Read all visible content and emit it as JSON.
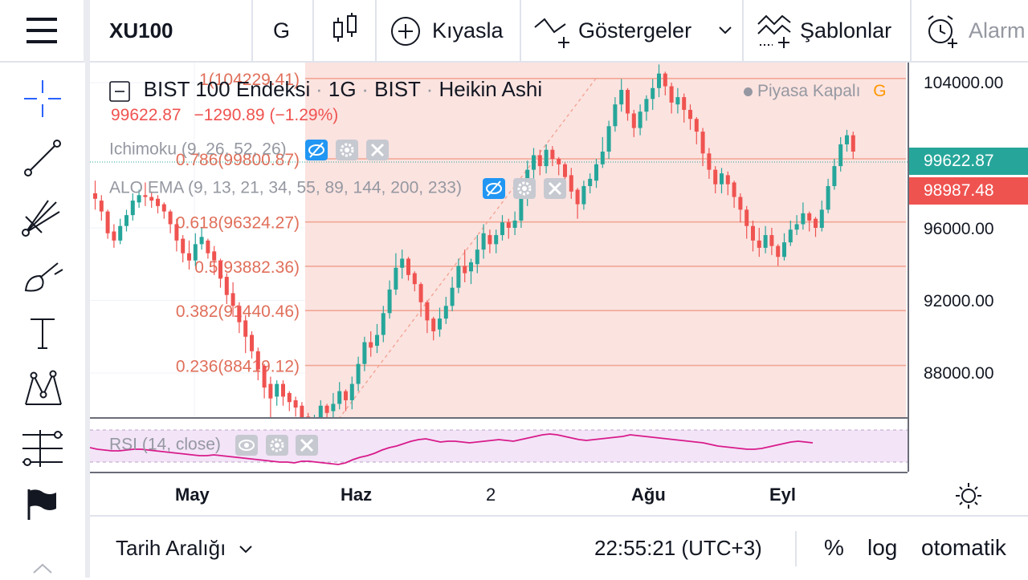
{
  "toolbar": {
    "symbol": "XU100",
    "interval": "G",
    "compare_label": "Kıyasla",
    "indicators_label": "Göstergeler",
    "templates_label": "Şablonlar",
    "alarm_label": "Alarm"
  },
  "legend": {
    "title": "BIST 100 Endeksi",
    "interval": "1G",
    "exchange": "BIST",
    "chart_style": "Heikin Ashi",
    "market_status": "Piyasa Kapalı",
    "market_status_letter": "G",
    "last_price": "99622.87",
    "change": "−1290.89 (−1.29%)",
    "indicator_1": "Ichimoku (9, 26, 52, 26)",
    "indicator_2": "ALO EMA (9, 13, 21, 34, 55, 89, 144, 200, 233)"
  },
  "fib_levels": [
    {
      "label": "1(104229.41)",
      "value": 104229.41
    },
    {
      "label": "0.786(99800.87)",
      "value": 99800.87
    },
    {
      "label": "0.618(96324.27)",
      "value": 96324.27
    },
    {
      "label": "0.5(93882.36)",
      "value": 93882.36
    },
    {
      "label": "0.382(91440.46)",
      "value": 91440.46
    },
    {
      "label": "0.236(88419.12)",
      "value": 88419.12
    }
  ],
  "price_axis": {
    "ticks": [
      "104000.00",
      "96000.00",
      "92000.00",
      "88000.00"
    ],
    "tick_values": [
      104000,
      96000,
      92000,
      88000
    ],
    "last_price_tag": "99622.87",
    "second_tag": "98987.48"
  },
  "rsi": {
    "label": "RSI (14, close)"
  },
  "time_axis": {
    "labels": [
      "May",
      "Haz",
      "2",
      "Ağu",
      "Eyl"
    ]
  },
  "bottombar": {
    "date_range_label": "Tarih Aralığı",
    "clock": "22:55:21 (UTC+3)",
    "percent_label": "%",
    "log_label": "log",
    "auto_label": "otomatik"
  },
  "colors": {
    "up": "#26a69a",
    "down": "#ef5350",
    "fib_line": "#f2a694",
    "fib_fill": "#fbe3e0",
    "fib_text": "#e06f5a",
    "rsi_line": "#d81b8a",
    "rsi_band": "#f3e4f8",
    "accent": "#2962ff"
  },
  "chart_data": {
    "type": "candlestick",
    "style": "Heikin Ashi",
    "ylim": [
      84500,
      105000
    ],
    "candles": [
      [
        97900,
        97600,
        98600,
        97000
      ],
      [
        97500,
        96900,
        97800,
        96400
      ],
      [
        96900,
        95700,
        97000,
        95400
      ],
      [
        95800,
        95300,
        96200,
        94900
      ],
      [
        95300,
        96100,
        96500,
        95100
      ],
      [
        96100,
        96700,
        97000,
        95800
      ],
      [
        96700,
        97500,
        97900,
        96400
      ],
      [
        97400,
        97800,
        98100,
        97100
      ],
      [
        97800,
        97700,
        98500,
        97200
      ],
      [
        97700,
        97500,
        98000,
        97100
      ],
      [
        97600,
        97200,
        97800,
        96800
      ],
      [
        97300,
        96900,
        97400,
        96500
      ],
      [
        96900,
        96200,
        97000,
        95700
      ],
      [
        96200,
        95300,
        96500,
        94700
      ],
      [
        95400,
        94600,
        95600,
        94100
      ],
      [
        94600,
        94200,
        95300,
        93700
      ],
      [
        94200,
        95100,
        95700,
        93900
      ],
      [
        95100,
        95500,
        96000,
        94800
      ],
      [
        95300,
        94600,
        95400,
        94300
      ],
      [
        94700,
        94200,
        95000,
        93400
      ],
      [
        94200,
        93200,
        94300,
        92700
      ],
      [
        93300,
        92300,
        93500,
        91800
      ],
      [
        92400,
        91700,
        93000,
        91100
      ],
      [
        91700,
        90800,
        91900,
        90200
      ],
      [
        90900,
        90000,
        91200,
        89100
      ],
      [
        90100,
        89200,
        90300,
        88800
      ],
      [
        89200,
        88200,
        89400,
        87600
      ],
      [
        88400,
        87200,
        88500,
        86600
      ],
      [
        87400,
        86600,
        87800,
        85400
      ],
      [
        86700,
        87400,
        87600,
        86200
      ],
      [
        87400,
        86700,
        87600,
        86200
      ],
      [
        86900,
        86400,
        87000,
        85900
      ],
      [
        86500,
        86100,
        86700,
        85600
      ],
      [
        86200,
        85500,
        86400,
        85100
      ],
      [
        85600,
        84900,
        85800,
        84200
      ],
      [
        85000,
        85500,
        85700,
        84400
      ],
      [
        85400,
        86200,
        86500,
        85100
      ],
      [
        86200,
        85800,
        86300,
        85200
      ],
      [
        85900,
        86300,
        86900,
        85400
      ],
      [
        86300,
        87000,
        87500,
        86000
      ],
      [
        87000,
        86500,
        87100,
        85900
      ],
      [
        86500,
        87400,
        87800,
        86000
      ],
      [
        87400,
        88500,
        88900,
        87000
      ],
      [
        88500,
        89700,
        90000,
        88100
      ],
      [
        89700,
        89400,
        90300,
        88900
      ],
      [
        89500,
        90100,
        90700,
        89100
      ],
      [
        90100,
        91300,
        91700,
        89700
      ],
      [
        91300,
        92600,
        93100,
        91000
      ],
      [
        92600,
        93800,
        94600,
        92300
      ],
      [
        93800,
        94300,
        94800,
        93200
      ],
      [
        94300,
        93400,
        94400,
        93100
      ],
      [
        93500,
        92900,
        93600,
        92500
      ],
      [
        92900,
        91900,
        93000,
        91100
      ],
      [
        91900,
        90900,
        92000,
        90200
      ],
      [
        91000,
        90300,
        91100,
        89800
      ],
      [
        90400,
        91000,
        91600,
        90000
      ],
      [
        91000,
        91700,
        92200,
        90700
      ],
      [
        91700,
        92700,
        93300,
        91400
      ],
      [
        92700,
        93900,
        94300,
        92400
      ],
      [
        93900,
        93500,
        94800,
        93000
      ],
      [
        93600,
        94100,
        94300,
        92900
      ],
      [
        94000,
        94800,
        95600,
        93500
      ],
      [
        94800,
        95700,
        96200,
        94300
      ],
      [
        95600,
        95100,
        95900,
        94600
      ],
      [
        95100,
        95600,
        95900,
        94600
      ],
      [
        95600,
        96300,
        96700,
        95300
      ],
      [
        96300,
        96000,
        96500,
        95400
      ],
      [
        96000,
        96400,
        96900,
        95600
      ],
      [
        96400,
        97600,
        98000,
        96000
      ],
      [
        97600,
        99200,
        99700,
        97200
      ],
      [
        99200,
        100000,
        100400,
        98700
      ],
      [
        100000,
        99400,
        100300,
        98900
      ],
      [
        99400,
        100300,
        100600,
        99000
      ],
      [
        100300,
        99800,
        100500,
        99400
      ],
      [
        99800,
        99500,
        99900,
        98900
      ],
      [
        99500,
        98800,
        99600,
        98200
      ],
      [
        98900,
        98000,
        99300,
        97600
      ],
      [
        98100,
        97300,
        98200,
        96500
      ],
      [
        97300,
        98300,
        98600,
        97000
      ],
      [
        98300,
        98700,
        99000,
        97900
      ],
      [
        98600,
        99500,
        99800,
        98200
      ],
      [
        99500,
        100200,
        101000,
        99300
      ],
      [
        100200,
        101600,
        101900,
        99800
      ],
      [
        101600,
        102800,
        103200,
        101300
      ],
      [
        102800,
        103600,
        104200,
        102400
      ],
      [
        103600,
        102300,
        103700,
        101900
      ],
      [
        102300,
        101500,
        102500,
        101000
      ],
      [
        101500,
        102400,
        102800,
        101100
      ],
      [
        102400,
        103100,
        103300,
        101900
      ],
      [
        103100,
        103700,
        104200,
        102500
      ],
      [
        103700,
        104500,
        105000,
        103200
      ],
      [
        104500,
        103800,
        104600,
        103300
      ],
      [
        103800,
        102900,
        104000,
        102300
      ],
      [
        102800,
        103200,
        103700,
        102300
      ],
      [
        103200,
        102500,
        103400,
        101800
      ],
      [
        102500,
        102000,
        102800,
        101400
      ],
      [
        102000,
        101300,
        102100,
        100600
      ],
      [
        101300,
        100100,
        101500,
        99400
      ],
      [
        100100,
        99200,
        100400,
        98700
      ],
      [
        99200,
        98400,
        99400,
        97900
      ],
      [
        98400,
        99000,
        99300,
        97900
      ],
      [
        98900,
        98400,
        99100,
        97800
      ],
      [
        98500,
        97700,
        98600,
        97100
      ],
      [
        97700,
        97000,
        97900,
        96300
      ],
      [
        97000,
        96100,
        97200,
        95400
      ],
      [
        96100,
        95300,
        96400,
        94700
      ],
      [
        95300,
        94900,
        96000,
        94400
      ],
      [
        94900,
        95600,
        96100,
        94600
      ],
      [
        95600,
        95000,
        96000,
        94500
      ],
      [
        95000,
        94400,
        95100,
        93900
      ],
      [
        94400,
        95200,
        95700,
        94200
      ],
      [
        95200,
        95900,
        96400,
        95000
      ],
      [
        95900,
        96200,
        96700,
        95600
      ],
      [
        96200,
        96800,
        97400,
        95900
      ],
      [
        96800,
        96400,
        96900,
        95800
      ],
      [
        96500,
        96000,
        96600,
        95500
      ],
      [
        96000,
        97000,
        97500,
        95800
      ],
      [
        97000,
        98300,
        98700,
        96800
      ],
      [
        98300,
        99400,
        99800,
        98100
      ],
      [
        99400,
        100600,
        101000,
        99100
      ],
      [
        100600,
        101100,
        101400,
        100200
      ],
      [
        101100,
        100200,
        101300,
        99800
      ]
    ],
    "rsi_values": [
      48,
      46,
      45,
      44,
      44,
      45,
      46,
      46,
      45,
      44,
      43,
      42,
      41,
      40,
      39,
      38,
      38,
      39,
      38,
      37,
      36,
      35,
      34,
      33,
      32,
      31,
      30,
      30,
      29,
      31,
      31,
      30,
      29,
      28,
      27,
      29,
      33,
      36,
      38,
      41,
      45,
      48,
      50,
      53,
      56,
      58,
      59,
      57,
      55,
      56,
      56,
      55,
      54,
      55,
      56,
      57,
      58,
      57,
      56,
      58,
      60,
      62,
      64,
      65,
      64,
      62,
      60,
      58,
      57,
      58,
      59,
      60,
      61,
      62,
      64,
      63,
      62,
      61,
      60,
      59,
      58,
      57,
      56,
      55,
      54,
      52,
      50,
      49,
      48,
      47,
      46,
      46,
      47,
      49,
      51,
      53,
      55,
      56,
      55,
      54
    ],
    "rsi_range": [
      20,
      80
    ],
    "time_labels": [
      "May",
      "Haz",
      "2",
      "Ağu",
      "Eyl"
    ]
  }
}
